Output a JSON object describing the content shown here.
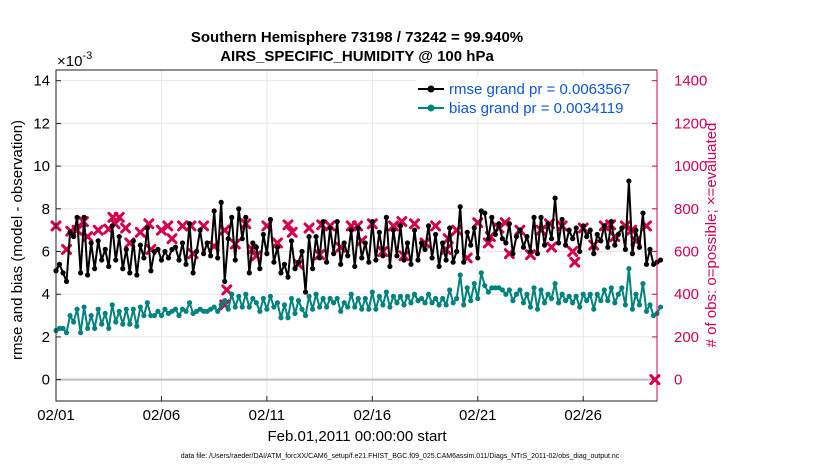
{
  "chart_data": {
    "type": "line",
    "title": "Southern Hemisphere 73198 / 73242 = 99.940%",
    "subtitle": "AIRS_SPECIFIC_HUMIDITY @ 100 hPa",
    "xlabel": "Feb.01,2011 00:00:00 start",
    "ylabel": "rmse and bias (model - observation)",
    "y2label": "# of obs: o=possible; ×=evaluated",
    "yexponent": "×10",
    "yexponent_power": "-3",
    "xlim": [
      0,
      28.5
    ],
    "ylim": [
      -1,
      14.5
    ],
    "y2lim": [
      -100,
      1450
    ],
    "x_ticks": [
      0,
      5,
      10,
      15,
      20,
      25
    ],
    "x_tick_labels": [
      "02/01",
      "02/06",
      "02/11",
      "02/16",
      "02/21",
      "02/26"
    ],
    "y_ticks": [
      0,
      2,
      4,
      6,
      8,
      10,
      12,
      14
    ],
    "y2_ticks": [
      0,
      200,
      400,
      600,
      800,
      1000,
      1200,
      1400
    ],
    "grid": true,
    "legend_position": "top-right",
    "footnote": "data file: /Users/raeder/DAI/ATM_forcXX/CAM6_setup/f.e21.FHIST_BGC.f09_025.CAM6assim.011/Diags_NTrS_2011-02/obs_diag_output.nc",
    "series": [
      {
        "name": "rmse grand pr = 0.0063567",
        "color": "#000000",
        "axis": "left",
        "values": [
          5.1,
          5.4,
          5.0,
          4.6,
          6.9,
          6.7,
          7.6,
          5.0,
          7.6,
          4.9,
          6.4,
          5.2,
          6.5,
          5.6,
          6.1,
          5.3,
          7.2,
          5.6,
          6.7,
          5.2,
          6.1,
          5.0,
          6.5,
          4.9,
          6.3,
          5.7,
          7.1,
          5.1,
          6.0,
          6.1,
          5.6,
          6.0,
          5.7,
          6.1,
          6.2,
          5.6,
          6.4,
          5.4,
          7.3,
          5.0,
          6.0,
          7.0,
          5.9,
          6.4,
          5.8,
          7.9,
          5.7,
          8.3,
          4.6,
          6.6,
          7.6,
          5.6,
          8.0,
          6.6,
          7.6,
          5.0,
          6.4,
          6.2,
          5.2,
          6.8,
          5.9,
          7.5,
          5.5,
          6.2,
          5.0,
          5.4,
          4.8,
          6.5,
          5.2,
          5.5,
          6.0,
          4.1,
          6.7,
          5.2,
          6.7,
          5.7,
          7.4,
          5.5,
          7.1,
          5.9,
          7.4,
          5.4,
          6.4,
          5.8,
          7.0,
          5.3,
          7.1,
          5.7,
          6.4,
          5.5,
          7.4,
          5.6,
          6.9,
          5.8,
          7.6,
          5.3,
          7.0,
          5.8,
          7.2,
          5.6,
          6.4,
          5.4,
          7.0,
          5.6,
          6.4,
          6.1,
          7.2,
          5.7,
          6.8,
          5.3,
          6.4,
          5.6,
          7.1,
          5.5,
          6.0,
          8.1,
          5.5,
          6.9,
          6.3,
          7.1,
          5.7,
          7.9,
          7.8,
          6.6,
          7.6,
          6.8,
          7.3,
          6.6,
          6.4,
          7.3,
          5.9,
          6.7,
          7.0,
          6.2,
          6.7,
          6.0,
          7.6,
          5.9,
          7.6,
          6.3,
          7.3,
          6.6,
          8.5,
          6.4,
          7.5,
          6.3,
          7.0,
          6.6,
          7.1,
          6.0,
          7.2,
          6.7,
          7.0,
          5.9,
          6.8,
          6.5,
          7.2,
          6.2,
          7.4,
          6.3,
          6.8,
          7.1,
          6.1,
          9.3,
          5.9,
          7.0,
          6.2,
          7.8,
          5.4,
          6.1,
          5.4,
          5.5,
          5.6
        ],
        "x_step": 0.16667
      },
      {
        "name": "bias grand pr = 0.0034119",
        "color": "#00827f",
        "axis": "left",
        "values": [
          2.3,
          2.4,
          2.4,
          2.2,
          3.0,
          2.7,
          3.3,
          2.2,
          3.4,
          2.4,
          3.0,
          2.4,
          3.3,
          2.6,
          3.1,
          2.4,
          3.5,
          2.7,
          3.2,
          2.6,
          3.3,
          2.6,
          3.3,
          2.5,
          3.4,
          3.0,
          3.6,
          3.0,
          3.0,
          3.2,
          3.0,
          3.3,
          3.1,
          3.2,
          3.3,
          3.0,
          3.3,
          3.2,
          3.6,
          3.1,
          3.2,
          3.3,
          3.2,
          3.2,
          3.3,
          3.4,
          3.2,
          3.5,
          3.7,
          3.3,
          4.0,
          3.4,
          3.9,
          3.4,
          4.0,
          3.4,
          3.8,
          3.6,
          3.2,
          3.8,
          3.3,
          3.9,
          3.4,
          3.6,
          2.9,
          3.5,
          2.9,
          3.8,
          3.1,
          3.7,
          3.3,
          3.0,
          3.9,
          3.3,
          4.0,
          3.4,
          3.8,
          3.4,
          3.8,
          3.6,
          3.8,
          3.2,
          3.6,
          3.4,
          4.0,
          3.4,
          3.8,
          3.3,
          3.8,
          3.3,
          4.1,
          3.3,
          3.9,
          3.5,
          4.1,
          3.4,
          3.9,
          3.6,
          3.9,
          3.5,
          3.9,
          3.6,
          4.0,
          3.7,
          3.8,
          3.6,
          4.0,
          3.6,
          3.8,
          3.5,
          3.8,
          3.5,
          4.2,
          3.6,
          3.8,
          4.9,
          3.5,
          4.3,
          3.7,
          4.5,
          3.8,
          5.0,
          4.4,
          4.1,
          4.3,
          4.3,
          4.3,
          4.2,
          4.0,
          4.2,
          3.7,
          4.0,
          4.2,
          3.6,
          4.0,
          3.4,
          4.3,
          3.3,
          4.2,
          3.6,
          4.0,
          3.8,
          4.5,
          3.6,
          4.0,
          3.7,
          3.9,
          3.6,
          3.9,
          3.4,
          4.0,
          3.7,
          4.0,
          3.3,
          4.0,
          3.7,
          4.2,
          3.7,
          4.3,
          3.6,
          4.0,
          4.3,
          3.5,
          5.2,
          3.3,
          4.0,
          3.5,
          4.5,
          3.2,
          3.5,
          3.0,
          3.1,
          3.4
        ],
        "x_step": 0.16667
      },
      {
        "name": "obs evaluated",
        "color": "#d5004d",
        "axis": "right",
        "marker": "x",
        "points": [
          [
            0.0,
            720
          ],
          [
            0.5,
            610
          ],
          [
            1.0,
            700
          ],
          [
            1.5,
            670
          ],
          [
            2.0,
            700
          ],
          [
            2.5,
            705
          ],
          [
            3.0,
            760
          ],
          [
            3.5,
            640
          ],
          [
            4.0,
            690
          ],
          [
            4.5,
            610
          ],
          [
            5.0,
            700
          ],
          [
            5.5,
            660
          ],
          [
            6.0,
            720
          ],
          [
            6.5,
            590
          ],
          [
            7.0,
            720
          ],
          [
            7.5,
            625
          ],
          [
            8.0,
            700
          ],
          [
            8.5,
            635
          ],
          [
            9.0,
            730
          ],
          [
            9.5,
            580
          ],
          [
            10.0,
            720
          ],
          [
            10.5,
            640
          ],
          [
            11.0,
            725
          ],
          [
            11.5,
            540
          ],
          [
            12.0,
            710
          ],
          [
            12.5,
            585
          ],
          [
            13.0,
            720
          ],
          [
            13.5,
            620
          ],
          [
            14.0,
            720
          ],
          [
            14.5,
            650
          ],
          [
            15.0,
            730
          ],
          [
            15.5,
            600
          ],
          [
            16.0,
            720
          ],
          [
            16.5,
            580
          ],
          [
            17.0,
            730
          ],
          [
            17.5,
            640
          ],
          [
            18.0,
            720
          ],
          [
            18.5,
            610
          ],
          [
            19.0,
            700
          ],
          [
            19.5,
            570
          ],
          [
            20.0,
            735
          ],
          [
            20.5,
            640
          ],
          [
            21.0,
            710
          ],
          [
            21.5,
            590
          ],
          [
            22.0,
            700
          ],
          [
            22.5,
            585
          ],
          [
            23.0,
            700
          ],
          [
            23.5,
            620
          ],
          [
            24.0,
            720
          ],
          [
            24.5,
            600
          ],
          [
            25.0,
            710
          ],
          [
            25.5,
            630
          ],
          [
            26.0,
            720
          ],
          [
            26.5,
            670
          ],
          [
            27.0,
            720
          ],
          [
            27.5,
            650
          ],
          [
            28.0,
            720
          ],
          [
            28.4,
            0
          ],
          [
            8.0,
            350
          ],
          [
            8.1,
            420
          ],
          [
            2.7,
            760
          ],
          [
            2.8,
            730
          ],
          [
            23.4,
            730
          ],
          [
            24.6,
            550
          ],
          [
            26.3,
            725
          ],
          [
            27.3,
            700
          ],
          [
            21.3,
            735
          ],
          [
            20.6,
            670
          ],
          [
            18.6,
            660
          ],
          [
            16.4,
            740
          ],
          [
            14.3,
            720
          ],
          [
            12.6,
            725
          ],
          [
            11.2,
            690
          ],
          [
            9.3,
            610
          ],
          [
            6.4,
            720
          ],
          [
            5.3,
            720
          ],
          [
            4.4,
            730
          ],
          [
            3.3,
            710
          ],
          [
            1.3,
            740
          ],
          [
            0.7,
            695
          ]
        ]
      }
    ]
  }
}
